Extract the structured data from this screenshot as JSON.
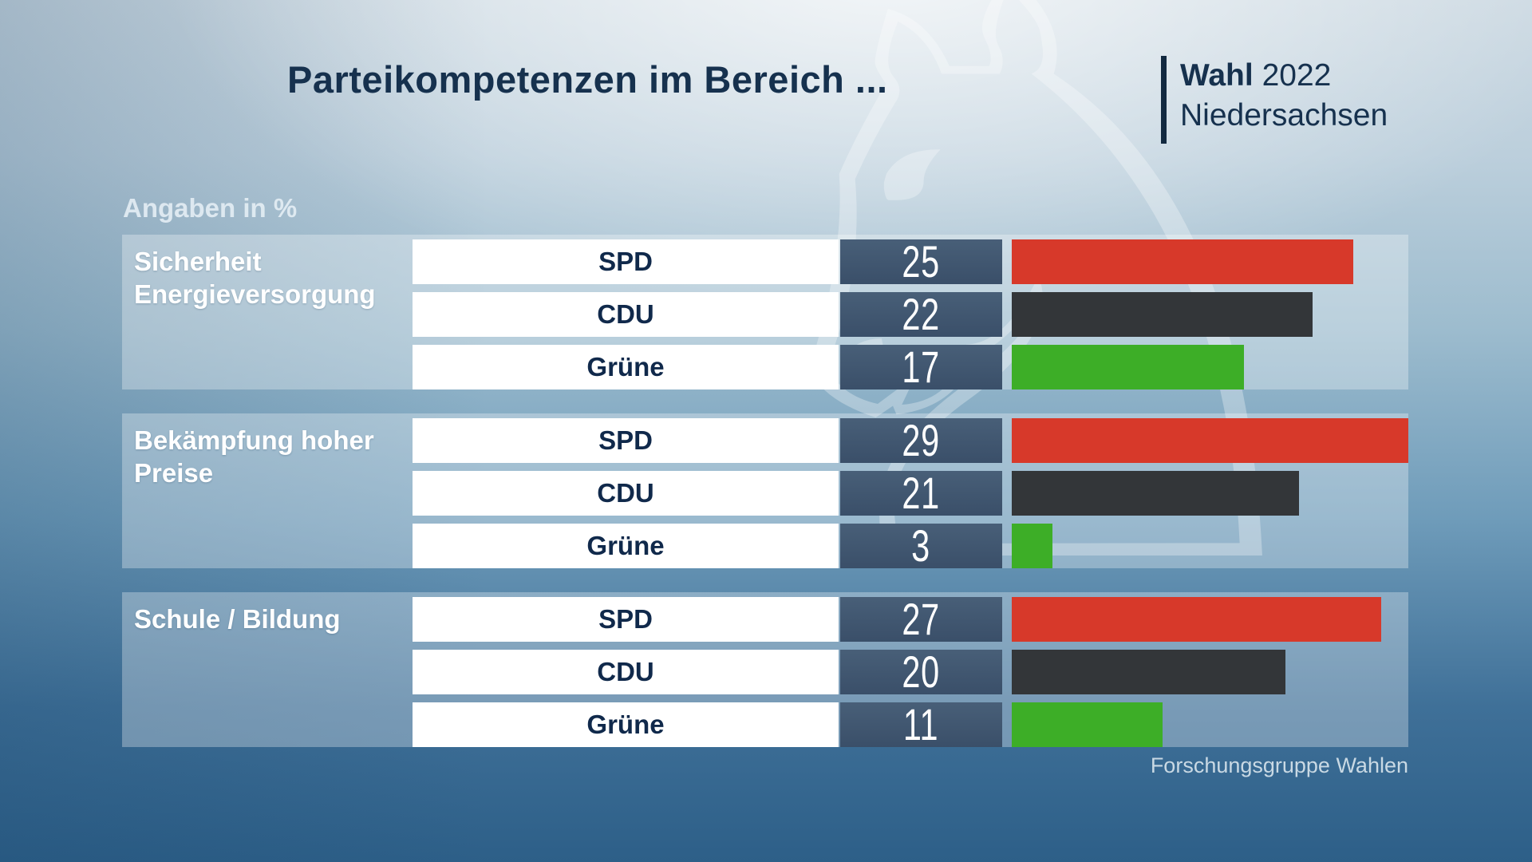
{
  "title": "Parteikompetenzen im Bereich ...",
  "badge": {
    "title_bold": "Wahl",
    "title_year": "2022",
    "region": "Niedersachsen"
  },
  "units_label": "Angaben in %",
  "source": "Forschungsgruppe Wahlen",
  "icons": {
    "horse_watermark": "♘"
  },
  "colors": {
    "spd": "#d7392a",
    "cdu": "#333639",
    "gruene": "#3dae27",
    "value_box": "#3d536d",
    "title_text": "#16314e",
    "category_text": "#ffffff",
    "background_top": "#dfe7ec",
    "background_bottom": "#2d5f88"
  },
  "chart_data": {
    "type": "bar",
    "orientation": "horizontal",
    "unit": "%",
    "title": "Parteikompetenzen im Bereich ...",
    "subtitle": "Wahl 2022 Niedersachsen",
    "note": "Angaben in %",
    "source": "Forschungsgruppe Wahlen",
    "value_axis_max": 29,
    "grid": false,
    "legend": false,
    "categories": [
      "Sicherheit Energieversorgung",
      "Bekämpfung hoher Preise",
      "Schule / Bildung"
    ],
    "series": [
      {
        "name": "SPD",
        "color": "#d7392a",
        "values": [
          25,
          29,
          27
        ]
      },
      {
        "name": "CDU",
        "color": "#333639",
        "values": [
          22,
          21,
          20
        ]
      },
      {
        "name": "Grüne",
        "color": "#3dae27",
        "values": [
          17,
          3,
          11
        ]
      }
    ],
    "groups": [
      {
        "category": "Sicherheit Energieversorgung",
        "rows": [
          {
            "party": "SPD",
            "value": 25,
            "color": "#d7392a"
          },
          {
            "party": "CDU",
            "value": 22,
            "color": "#333639"
          },
          {
            "party": "Grüne",
            "value": 17,
            "color": "#3dae27"
          }
        ]
      },
      {
        "category": "Bekämpfung hoher Preise",
        "rows": [
          {
            "party": "SPD",
            "value": 29,
            "color": "#d7392a"
          },
          {
            "party": "CDU",
            "value": 21,
            "color": "#333639"
          },
          {
            "party": "Grüne",
            "value": 3,
            "color": "#3dae27"
          }
        ]
      },
      {
        "category": "Schule / Bildung",
        "rows": [
          {
            "party": "SPD",
            "value": 27,
            "color": "#d7392a"
          },
          {
            "party": "CDU",
            "value": 20,
            "color": "#333639"
          },
          {
            "party": "Grüne",
            "value": 11,
            "color": "#3dae27"
          }
        ]
      }
    ]
  }
}
